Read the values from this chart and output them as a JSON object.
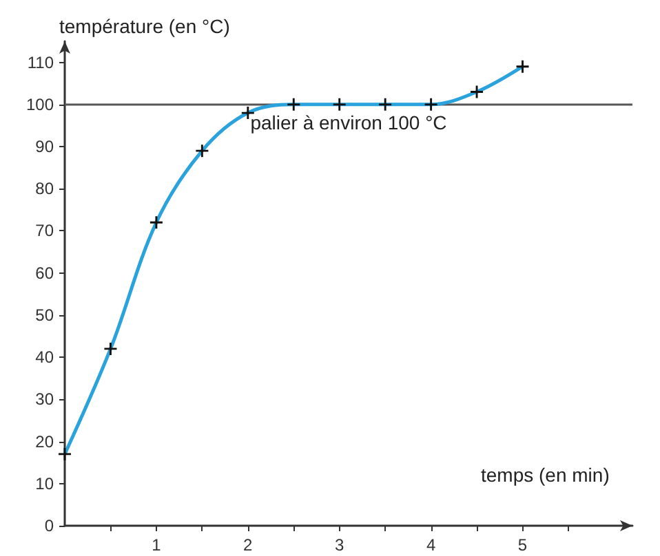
{
  "chart_data": {
    "type": "line",
    "xlabel": "temps (en min)",
    "ylabel": "température (en °C)",
    "x": [
      0,
      0.5,
      1,
      1.5,
      2,
      2.5,
      3,
      3.5,
      4,
      4.5,
      5
    ],
    "series": [
      {
        "color": "#2aa3dc",
        "values": [
          17,
          42,
          72,
          89,
          98,
          100,
          100,
          100,
          100,
          103,
          109
        ]
      }
    ],
    "xlim": [
      0,
      6.2
    ],
    "ylim": [
      0,
      115
    ],
    "xticks": [
      {
        "value": 0.5,
        "label": null
      },
      1,
      {
        "value": 1.5,
        "label": null
      },
      2,
      {
        "value": 2.5,
        "label": null
      },
      3,
      {
        "value": 3.5,
        "label": null
      },
      4,
      {
        "value": 4.5,
        "label": null
      },
      5,
      {
        "value": 5.5,
        "label": null
      }
    ],
    "yticks": [
      0,
      10,
      20,
      30,
      40,
      50,
      60,
      70,
      80,
      90,
      100,
      110
    ],
    "ref_lines": [
      {
        "axis": "y",
        "value": 100,
        "label": "palier à environ 100 °C",
        "color": "#555555"
      }
    ],
    "marker": "cross"
  }
}
